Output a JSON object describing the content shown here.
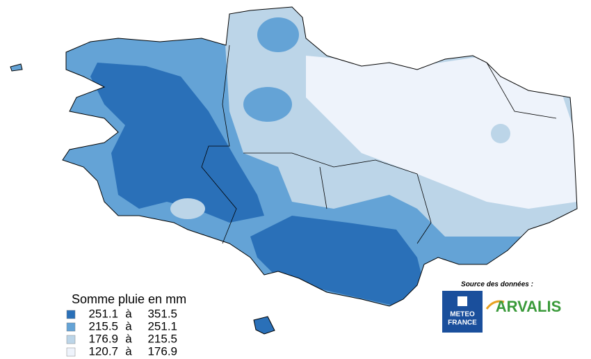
{
  "legend": {
    "title": "Somme pluie en mm",
    "items": [
      {
        "from": 251.1,
        "sep": "à",
        "to": 351.5,
        "color": "#2a70b8"
      },
      {
        "from": 215.5,
        "sep": "à",
        "to": 251.1,
        "color": "#64a3d6"
      },
      {
        "from": 176.9,
        "sep": "à",
        "to": 215.5,
        "color": "#bcd5e8"
      },
      {
        "from": 120.7,
        "sep": "à",
        "to": 176.9,
        "color": "#eef3fb"
      }
    ]
  },
  "source": {
    "label": "Source des données :",
    "meteo": [
      "METEO",
      "FRANCE"
    ],
    "arvalis": "ARVALIS"
  }
}
